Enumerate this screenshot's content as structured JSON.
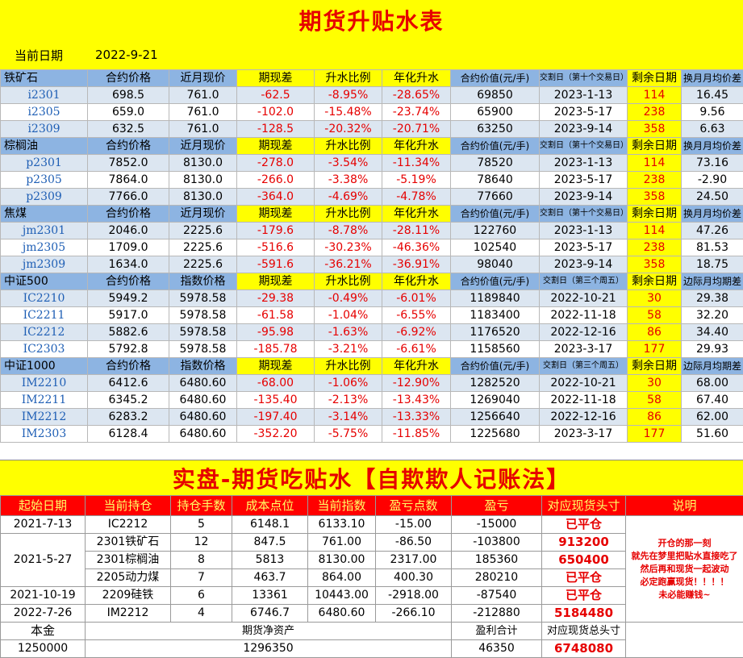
{
  "title": "期货升贴水表",
  "date": {
    "label": "当前日期",
    "value": "2022-9-21"
  },
  "groups": [
    {
      "header": [
        "铁矿石",
        "合约价格",
        "近月现价",
        "期现差",
        "升水比例",
        "年化升水",
        "合约价值(元/手)",
        "交割日（第十个交易日）",
        "剩余日期",
        "换月月均价差"
      ],
      "rows": [
        [
          "i2301",
          "698.5",
          "761.0",
          "-62.5",
          "-8.95%",
          "-28.65%",
          "69850",
          "2023-1-13",
          "114",
          "16.45"
        ],
        [
          "i2305",
          "659.0",
          "761.0",
          "-102.0",
          "-15.48%",
          "-23.74%",
          "65900",
          "2023-5-17",
          "238",
          "9.56"
        ],
        [
          "i2309",
          "632.5",
          "761.0",
          "-128.5",
          "-20.32%",
          "-20.71%",
          "63250",
          "2023-9-14",
          "358",
          "6.63"
        ]
      ]
    },
    {
      "header": [
        "棕榈油",
        "合约价格",
        "近月现价",
        "期现差",
        "升水比例",
        "年化升水",
        "合约价值(元/手)",
        "交割日（第十个交易日）",
        "剩余日期",
        "换月月均价差"
      ],
      "rows": [
        [
          "p2301",
          "7852.0",
          "8130.0",
          "-278.0",
          "-3.54%",
          "-11.34%",
          "78520",
          "2023-1-13",
          "114",
          "73.16"
        ],
        [
          "p2305",
          "7864.0",
          "8130.0",
          "-266.0",
          "-3.38%",
          "-5.19%",
          "78640",
          "2023-5-17",
          "238",
          "-2.90"
        ],
        [
          "p2309",
          "7766.0",
          "8130.0",
          "-364.0",
          "-4.69%",
          "-4.78%",
          "77660",
          "2023-9-14",
          "358",
          "24.50"
        ]
      ]
    },
    {
      "header": [
        "焦煤",
        "合约价格",
        "近月现价",
        "期现差",
        "升水比例",
        "年化升水",
        "合约价值(元/手)",
        "交割日（第十个交易日）",
        "剩余日期",
        "换月月均价差"
      ],
      "rows": [
        [
          "jm2301",
          "2046.0",
          "2225.6",
          "-179.6",
          "-8.78%",
          "-28.11%",
          "122760",
          "2023-1-13",
          "114",
          "47.26"
        ],
        [
          "jm2305",
          "1709.0",
          "2225.6",
          "-516.6",
          "-30.23%",
          "-46.36%",
          "102540",
          "2023-5-17",
          "238",
          "81.53"
        ],
        [
          "jm2309",
          "1634.0",
          "2225.6",
          "-591.6",
          "-36.21%",
          "-36.91%",
          "98040",
          "2023-9-14",
          "358",
          "18.75"
        ]
      ]
    },
    {
      "header": [
        "中证500",
        "合约价格",
        "指数价格",
        "期现差",
        "升水比例",
        "年化升水",
        "合约价值(元/手)",
        "交割日（第三个周五）",
        "剩余日期",
        "边际月均期差"
      ],
      "rows": [
        [
          "IC2210",
          "5949.2",
          "5978.58",
          "-29.38",
          "-0.49%",
          "-6.01%",
          "1189840",
          "2022-10-21",
          "30",
          "29.38"
        ],
        [
          "IC2211",
          "5917.0",
          "5978.58",
          "-61.58",
          "-1.04%",
          "-6.55%",
          "1183400",
          "2022-11-18",
          "58",
          "32.20"
        ],
        [
          "IC2212",
          "5882.6",
          "5978.58",
          "-95.98",
          "-1.63%",
          "-6.92%",
          "1176520",
          "2022-12-16",
          "86",
          "34.40"
        ],
        [
          "IC2303",
          "5792.8",
          "5978.58",
          "-185.78",
          "-3.21%",
          "-6.61%",
          "1158560",
          "2023-3-17",
          "177",
          "29.93"
        ]
      ]
    },
    {
      "header": [
        "中证1000",
        "合约价格",
        "指数价格",
        "期现差",
        "升水比例",
        "年化升水",
        "合约价值(元/手)",
        "交割日（第三个周五）",
        "剩余日期",
        "边际月均期差"
      ],
      "rows": [
        [
          "IM2210",
          "6412.6",
          "6480.60",
          "-68.00",
          "-1.06%",
          "-12.90%",
          "1282520",
          "2022-10-21",
          "30",
          "68.00"
        ],
        [
          "IM2211",
          "6345.2",
          "6480.60",
          "-135.40",
          "-2.13%",
          "-13.43%",
          "1269040",
          "2022-11-18",
          "58",
          "67.40"
        ],
        [
          "IM2212",
          "6283.2",
          "6480.60",
          "-197.40",
          "-3.14%",
          "-13.33%",
          "1256640",
          "2022-12-16",
          "86",
          "62.00"
        ],
        [
          "IM2303",
          "6128.4",
          "6480.60",
          "-352.20",
          "-5.75%",
          "-11.85%",
          "1225680",
          "2023-3-17",
          "177",
          "51.60"
        ]
      ]
    }
  ],
  "ledger": {
    "title": "实盘-期货吃贴水【自欺欺人记账法】",
    "headers": [
      "起始日期",
      "当前持仓",
      "持仓手数",
      "成本点位",
      "当前指数",
      "盈亏点数",
      "盈亏",
      "对应现货头寸",
      "说明"
    ],
    "rows": [
      {
        "date": "2021-7-13",
        "holding": "IC2212",
        "lots": "5",
        "cost": "6148.1",
        "index": "6133.10",
        "points": "-15.00",
        "pnl": "-15000",
        "position": "已平仓"
      },
      {
        "date": "2021-5-27",
        "holding": "2301铁矿石",
        "lots": "12",
        "cost": "847.5",
        "index": "761.00",
        "points": "-86.50",
        "pnl": "-103800",
        "position": "913200"
      },
      {
        "holding": "2301棕榈油",
        "lots": "8",
        "cost": "5813",
        "index": "8130.00",
        "points": "2317.00",
        "pnl": "185360",
        "position": "650400"
      },
      {
        "holding": "2205动力煤",
        "lots": "7",
        "cost": "463.7",
        "index": "864.00",
        "points": "400.30",
        "pnl": "280210",
        "position": "已平仓"
      },
      {
        "date": "2021-10-19",
        "holding": "2209硅铁",
        "lots": "6",
        "cost": "13361",
        "index": "10443.00",
        "points": "-2918.00",
        "pnl": "-87540",
        "position": "已平仓"
      },
      {
        "date": "2022-7-26",
        "holding": "IM2212",
        "lots": "4",
        "cost": "6746.7",
        "index": "6480.60",
        "points": "-266.10",
        "pnl": "-212880",
        "position": "5184480"
      }
    ],
    "note": [
      "开仓的那一刻",
      "就先在梦里把贴水直接吃了",
      "然后再和现货一起波动",
      "必定跑赢现货！！！！",
      "未必能赚钱~"
    ],
    "footer": {
      "capital_label": "本金",
      "capital": "1250000",
      "net_assets_label": "期货净资产",
      "net_assets": "1296350",
      "pnl_total_label": "盈利合计",
      "pnl_total": "46350",
      "spot_total_label": "对应现货总头寸",
      "spot_total": "6748080"
    }
  }
}
